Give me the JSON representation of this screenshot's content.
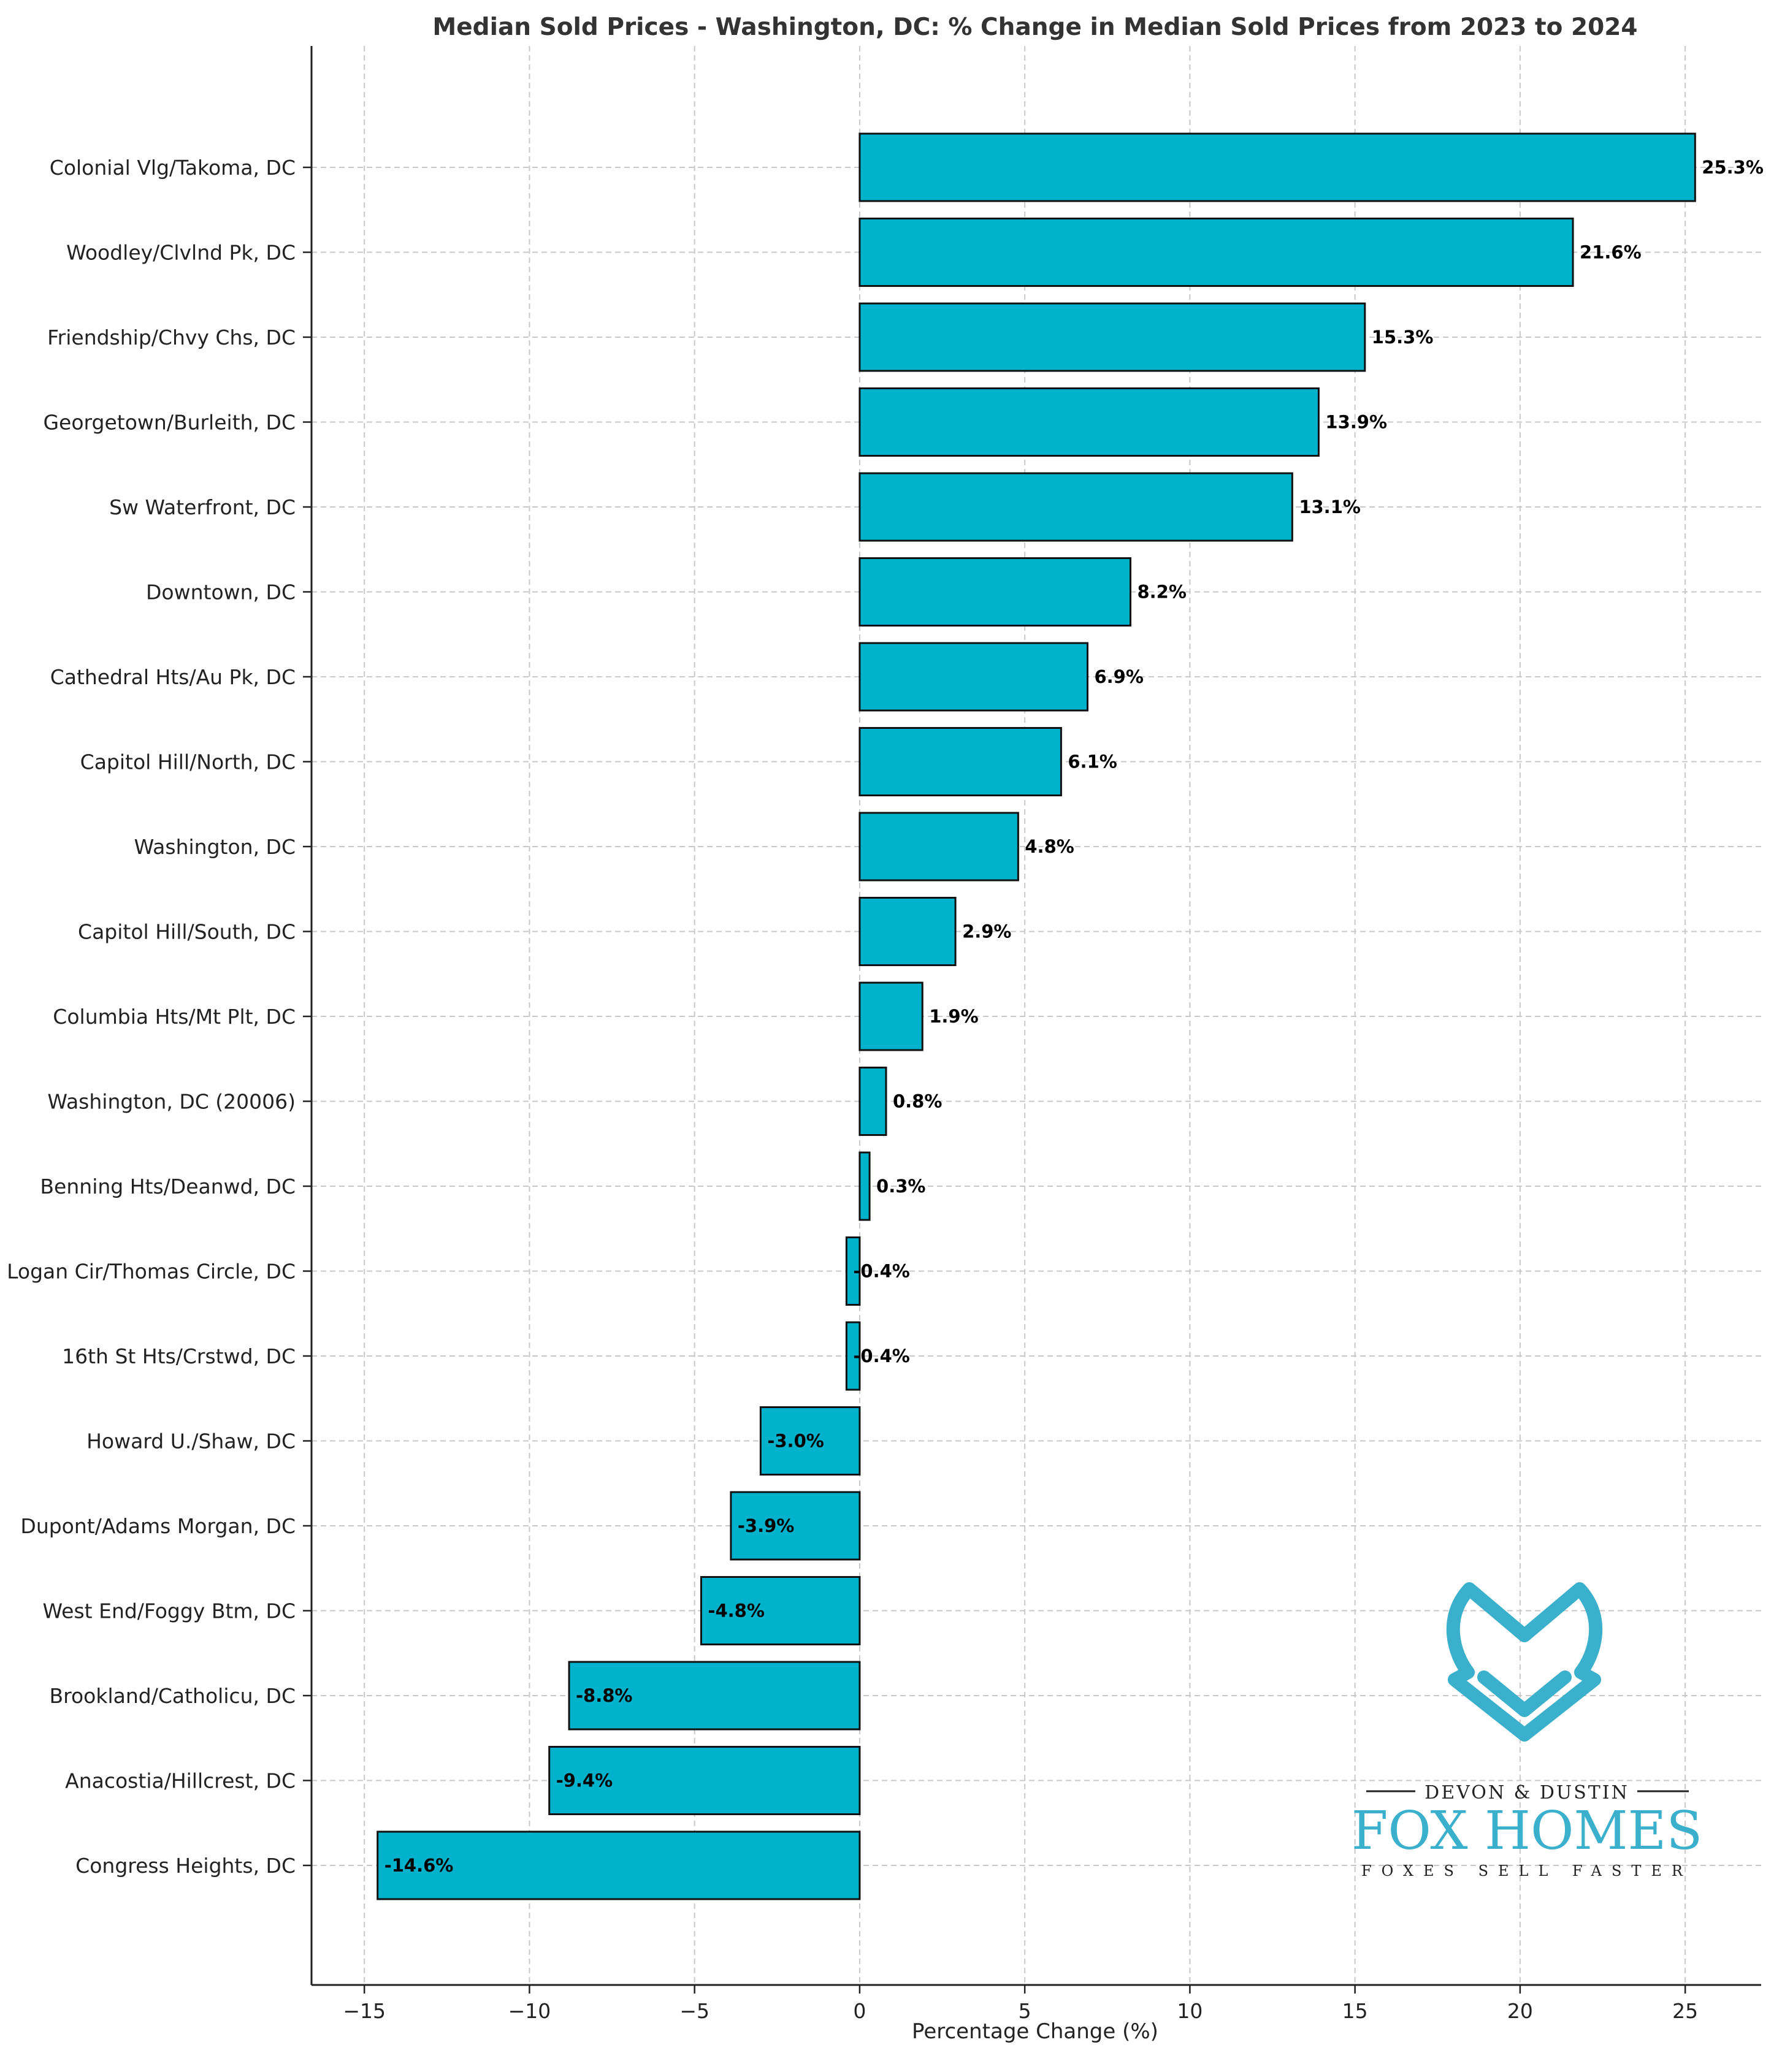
{
  "colors": {
    "bar": "#00B2CB",
    "bar_edge": "#111111",
    "grid": "#c8c8c8",
    "logo": "#3BB0CC",
    "text": "#333333"
  },
  "chart_data": {
    "type": "bar",
    "orientation": "horizontal",
    "title": "Median Sold Prices - Washington, DC: % Change in Median Sold Prices from 2023 to 2024",
    "xlabel": "Percentage Change (%)",
    "ylabel": "",
    "xlim": [
      -16.6,
      27.3
    ],
    "xticks": [
      -15,
      -10,
      -5,
      0,
      5,
      10,
      15,
      20,
      25
    ],
    "xtick_labels": [
      "−15",
      "−10",
      "−5",
      "0",
      "5",
      "10",
      "15",
      "20",
      "25"
    ],
    "grid": true,
    "categories": [
      "Colonial Vlg/Takoma, DC",
      "Woodley/Clvlnd Pk, DC",
      "Friendship/Chvy Chs, DC",
      "Georgetown/Burleith, DC",
      "Sw Waterfront, DC",
      "Downtown, DC",
      "Cathedral Hts/Au Pk, DC",
      "Capitol Hill/North, DC",
      "Washington, DC",
      "Capitol Hill/South, DC",
      "Columbia Hts/Mt Plt, DC",
      "Washington, DC (20006)",
      "Benning Hts/Deanwd, DC",
      "Logan Cir/Thomas Circle, DC",
      "16th St Hts/Crstwd, DC",
      "Howard U./Shaw, DC",
      "Dupont/Adams Morgan, DC",
      "West End/Foggy Btm, DC",
      "Brookland/Catholicu, DC",
      "Anacostia/Hillcrest, DC",
      "Congress Heights, DC"
    ],
    "values": [
      25.3,
      21.6,
      15.3,
      13.9,
      13.1,
      8.2,
      6.9,
      6.1,
      4.8,
      2.9,
      1.9,
      0.8,
      0.3,
      -0.4,
      -0.4,
      -3.0,
      -3.9,
      -4.8,
      -8.8,
      -9.4,
      -14.6
    ],
    "data_labels": [
      "25.3%",
      "21.6%",
      "15.3%",
      "13.9%",
      "13.1%",
      "8.2%",
      "6.9%",
      "6.1%",
      "4.8%",
      "2.9%",
      "1.9%",
      "0.8%",
      "0.3%",
      "-0.4%",
      "-0.4%",
      "-3.0%",
      "-3.9%",
      "-4.8%",
      "-8.8%",
      "-9.4%",
      "-14.6%"
    ]
  },
  "logo": {
    "line1": "DEVON & DUSTIN",
    "line2": "FOX HOMES",
    "line3": "FOXES SELL FASTER",
    "icon": "fox-head-icon"
  }
}
